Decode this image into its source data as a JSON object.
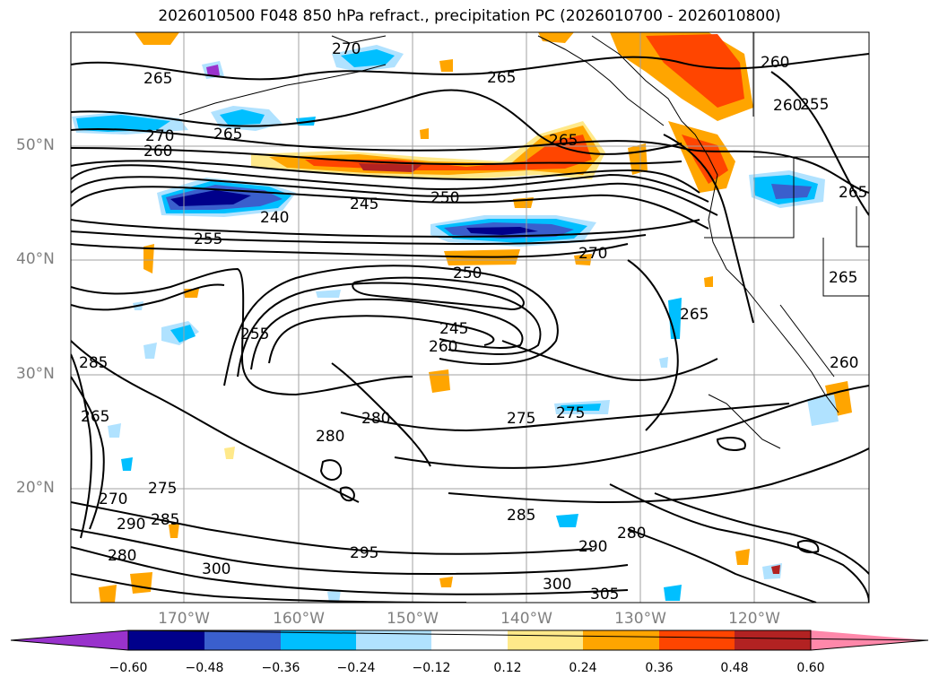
{
  "title": "2026010500 F048 850 hPa refract., precipitation PC (2026010700 - 2026010800)",
  "lat_labels": [
    "50°N",
    "40°N",
    "30°N",
    "20°N"
  ],
  "lon_labels": [
    "170°W",
    "160°W",
    "150°W",
    "140°W",
    "130°W",
    "120°W"
  ],
  "colorbar": {
    "ticks": [
      "−0.60",
      "−0.48",
      "−0.36",
      "−0.24",
      "−0.12",
      "0.12",
      "0.24",
      "0.36",
      "0.48",
      "0.60"
    ],
    "colors": [
      "#9932cc",
      "#00008b",
      "#3a5fcd",
      "#00bfff",
      "#b0e2ff",
      "#ffffff",
      "#ffe98a",
      "#ffa500",
      "#ff4500",
      "#b22222",
      "#ff88aa"
    ]
  },
  "contour_labels": [
    "265",
    "270",
    "265",
    "265",
    "260",
    "255",
    "265",
    "260",
    "270",
    "260",
    "245",
    "250",
    "240",
    "255",
    "270",
    "250",
    "265",
    "265",
    "265",
    "255",
    "245",
    "260",
    "285",
    "280",
    "275",
    "275",
    "280",
    "265",
    "270",
    "275",
    "285",
    "280",
    "285",
    "290",
    "295",
    "300",
    "300",
    "305",
    "290",
    "280",
    "260"
  ]
}
